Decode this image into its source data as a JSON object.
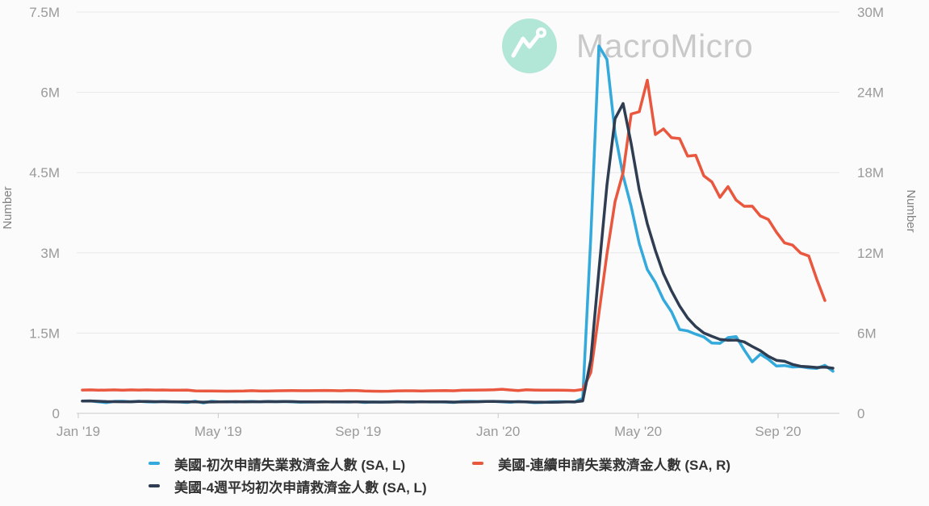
{
  "watermark": {
    "brand": "MacroMicro"
  },
  "axes": {
    "left": {
      "title": "Number",
      "max": 7.5,
      "ticks": [
        {
          "value": 0,
          "label": "0"
        },
        {
          "value": 1.5,
          "label": "1.5M"
        },
        {
          "value": 3,
          "label": "3M"
        },
        {
          "value": 4.5,
          "label": "4.5M"
        },
        {
          "value": 6,
          "label": "6M"
        },
        {
          "value": 7.5,
          "label": "7.5M"
        }
      ]
    },
    "right": {
      "title": "Number",
      "max": 30,
      "ticks": [
        {
          "value": 0,
          "label": "0"
        },
        {
          "value": 6,
          "label": "6M"
        },
        {
          "value": 12,
          "label": "12M"
        },
        {
          "value": 18,
          "label": "18M"
        },
        {
          "value": 24,
          "label": "24M"
        },
        {
          "value": 30,
          "label": "30M"
        }
      ]
    },
    "x": {
      "ticks": [
        {
          "label": "Jan '19",
          "month_offset": 0
        },
        {
          "label": "May '19",
          "month_offset": 4
        },
        {
          "label": "Sep '19",
          "month_offset": 8
        },
        {
          "label": "Jan '20",
          "month_offset": 12
        },
        {
          "label": "May '20",
          "month_offset": 16
        },
        {
          "label": "Sep '20",
          "month_offset": 20
        }
      ]
    }
  },
  "legend": [
    {
      "label": "美國-初次申請失業救濟金人數 (SA, L)",
      "color": "#33a9dc"
    },
    {
      "label": "美國-連續申請失業救濟金人數 (SA, R)",
      "color": "#e9573f"
    },
    {
      "label": "美國-4週平均初次申請救濟金人數 (SA, L)",
      "color": "#2e3d52"
    }
  ],
  "chart_data": {
    "type": "line",
    "title": "",
    "x_interval": "weekly",
    "x_start_label": "Jan '19",
    "x_end_label": "Oct '20",
    "xlabel": "",
    "ylabel_left": "Number",
    "ylabel_right": "Number",
    "ylim_left": [
      0,
      7.5
    ],
    "ylim_right": [
      0,
      30
    ],
    "grid": true,
    "legend_position": "bottom",
    "unit": "millions of persons",
    "series": [
      {
        "name": "美國-初次申請失業救濟金人數 (SA, L)",
        "axis": "left",
        "color": "#33a9dc",
        "values": [
          0.231,
          0.232,
          0.216,
          0.2,
          0.224,
          0.226,
          0.217,
          0.226,
          0.216,
          0.212,
          0.221,
          0.216,
          0.212,
          0.204,
          0.227,
          0.194,
          0.226,
          0.216,
          0.218,
          0.212,
          0.218,
          0.221,
          0.216,
          0.222,
          0.217,
          0.222,
          0.216,
          0.209,
          0.211,
          0.216,
          0.217,
          0.212,
          0.215,
          0.211,
          0.217,
          0.204,
          0.213,
          0.21,
          0.215,
          0.22,
          0.213,
          0.211,
          0.218,
          0.212,
          0.215,
          0.211,
          0.203,
          0.222,
          0.224,
          0.22,
          0.222,
          0.224,
          0.214,
          0.207,
          0.22,
          0.212,
          0.201,
          0.204,
          0.215,
          0.219,
          0.217,
          0.211,
          0.282,
          3.307,
          6.867,
          6.615,
          5.237,
          4.442,
          3.867,
          3.176,
          2.687,
          2.446,
          2.123,
          1.897,
          1.566,
          1.54,
          1.48,
          1.427,
          1.314,
          1.308,
          1.416,
          1.435,
          1.186,
          0.963,
          1.104,
          1.011,
          0.884,
          0.893,
          0.866,
          0.873,
          0.849,
          0.84,
          0.898,
          0.787
        ]
      },
      {
        "name": "美國-連續申請失業救濟金人數 (SA, R)",
        "axis": "right",
        "color": "#e9573f",
        "values": [
          1.738,
          1.755,
          1.727,
          1.74,
          1.752,
          1.733,
          1.756,
          1.743,
          1.75,
          1.738,
          1.745,
          1.732,
          1.728,
          1.743,
          1.68,
          1.671,
          1.674,
          1.662,
          1.655,
          1.662,
          1.67,
          1.693,
          1.666,
          1.676,
          1.687,
          1.694,
          1.7,
          1.694,
          1.69,
          1.699,
          1.713,
          1.699,
          1.686,
          1.708,
          1.702,
          1.666,
          1.659,
          1.651,
          1.655,
          1.682,
          1.684,
          1.689,
          1.676,
          1.688,
          1.693,
          1.697,
          1.684,
          1.722,
          1.728,
          1.739,
          1.745,
          1.757,
          1.803,
          1.749,
          1.703,
          1.757,
          1.742,
          1.726,
          1.733,
          1.729,
          1.722,
          1.702,
          1.784,
          3.059,
          7.446,
          11.914,
          15.818,
          18.011,
          22.377,
          22.548,
          24.912,
          20.841,
          21.268,
          20.606,
          20.544,
          19.231,
          19.29,
          17.76,
          17.304,
          16.151,
          16.951,
          15.947,
          15.48,
          15.486,
          14.758,
          14.492,
          13.544,
          12.747,
          12.58,
          11.979,
          11.767,
          10.018,
          8.432
        ]
      },
      {
        "name": "美國-4週平均初次申請救濟金人數 (SA, L)",
        "axis": "left",
        "color": "#2e3d52",
        "derived_from_series": 0,
        "moving_average_weeks": 4
      }
    ]
  }
}
